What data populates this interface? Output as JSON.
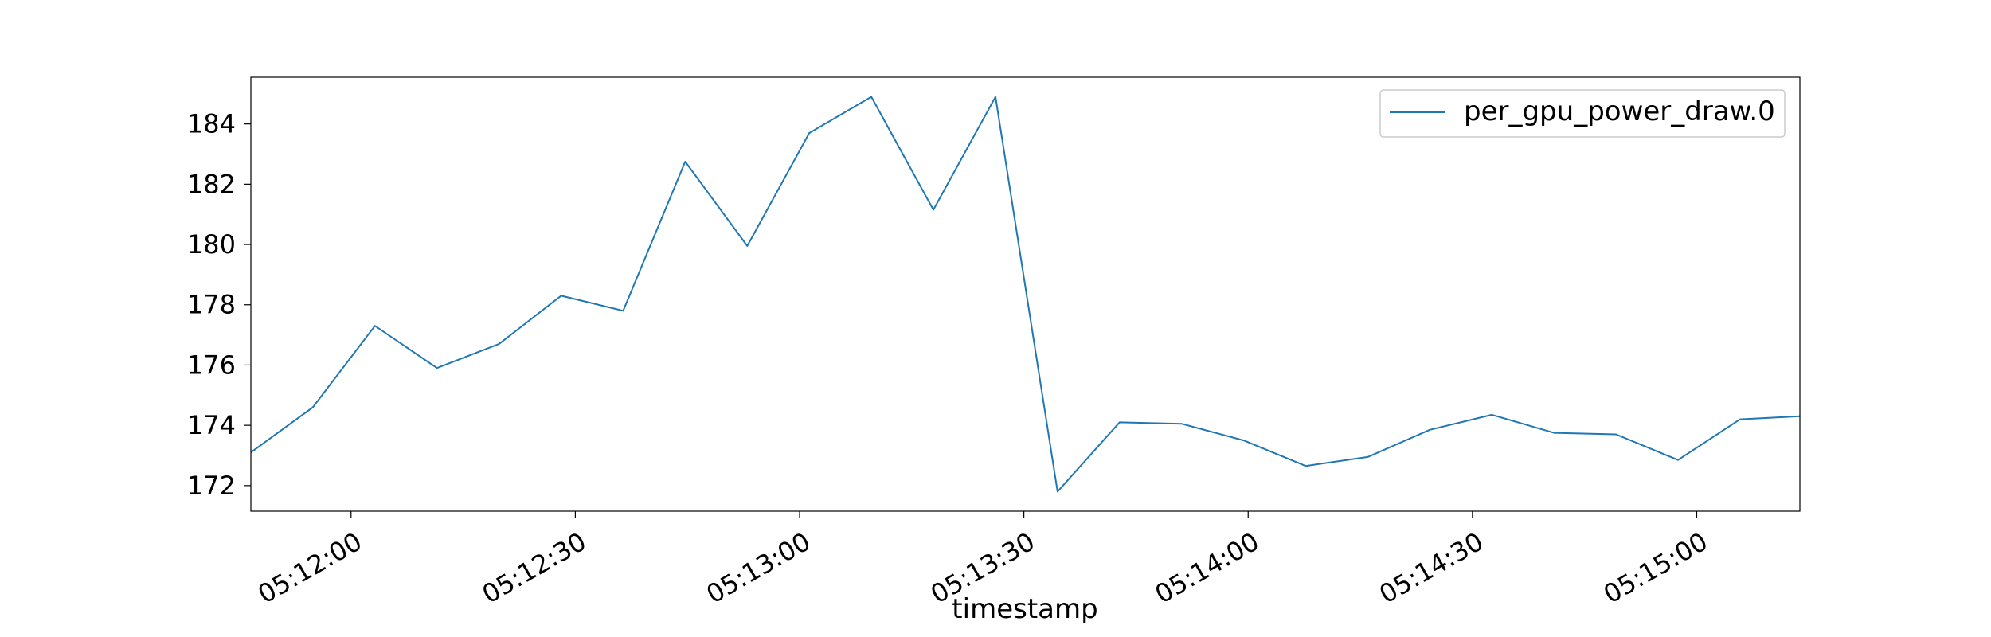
{
  "chart_data": {
    "type": "line",
    "title": "",
    "xlabel": "timestamp",
    "ylabel": "",
    "x_tick_labels": [
      "05:12:00",
      "05:12:30",
      "05:13:00",
      "05:13:30",
      "05:14:00",
      "05:14:30",
      "05:15:00"
    ],
    "x_tick_seconds": [
      720,
      750,
      780,
      810,
      840,
      870,
      900
    ],
    "y_ticks": [
      172,
      174,
      176,
      178,
      180,
      182,
      184
    ],
    "xlim_seconds": [
      706.6,
      913.8
    ],
    "ylim": [
      171.15,
      185.55
    ],
    "legend": {
      "position": "upper right",
      "entries": [
        "per_gpu_power_draw.0"
      ]
    },
    "grid": false,
    "series": [
      {
        "name": "per_gpu_power_draw.0",
        "color": "#1f77b4",
        "x_seconds": [
          706.6,
          714.9,
          723.2,
          731.5,
          739.8,
          748.1,
          756.4,
          764.7,
          773.0,
          781.3,
          789.6,
          797.9,
          806.2,
          814.5,
          822.8,
          831.1,
          839.4,
          847.7,
          856.0,
          864.3,
          872.6,
          880.9,
          889.2,
          897.5,
          905.8,
          913.8
        ],
        "values": [
          173.1,
          174.6,
          177.3,
          175.9,
          176.7,
          178.3,
          177.8,
          182.75,
          179.95,
          183.7,
          184.9,
          181.15,
          184.9,
          171.8,
          174.1,
          174.05,
          173.5,
          172.65,
          172.95,
          173.85,
          174.35,
          173.75,
          173.7,
          172.85,
          174.2,
          174.3
        ]
      }
    ]
  }
}
